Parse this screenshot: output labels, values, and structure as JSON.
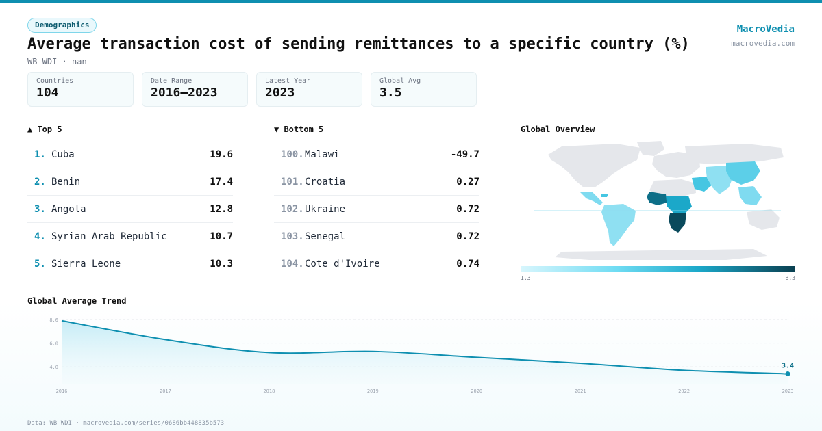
{
  "header": {
    "badge": "Demographics",
    "title": "Average transaction cost of sending remittances to a specific country (%)",
    "subtitle": "WB WDI · nan"
  },
  "brand": {
    "name": "MacroVedia",
    "url": "macrovedia.com"
  },
  "stats": [
    {
      "label": "Countries",
      "value": "104"
    },
    {
      "label": "Date Range",
      "value": "2016–2023"
    },
    {
      "label": "Latest Year",
      "value": "2023"
    },
    {
      "label": "Global Avg",
      "value": "3.5"
    }
  ],
  "top": {
    "title": "▲ Top 5",
    "rows": [
      {
        "rank": "1.",
        "name": "Cuba",
        "value": "19.6"
      },
      {
        "rank": "2.",
        "name": "Benin",
        "value": "17.4"
      },
      {
        "rank": "3.",
        "name": "Angola",
        "value": "12.8"
      },
      {
        "rank": "4.",
        "name": "Syrian Arab Republic",
        "value": "10.7"
      },
      {
        "rank": "5.",
        "name": "Sierra Leone",
        "value": "10.3"
      }
    ]
  },
  "bottom": {
    "title": "▼ Bottom 5",
    "rows": [
      {
        "rank": "100.",
        "name": "Malawi",
        "value": "-49.7"
      },
      {
        "rank": "101.",
        "name": "Croatia",
        "value": "0.27"
      },
      {
        "rank": "102.",
        "name": "Ukraine",
        "value": "0.72"
      },
      {
        "rank": "103.",
        "name": "Senegal",
        "value": "0.72"
      },
      {
        "rank": "104.",
        "name": "Cote d'Ivoire",
        "value": "0.74"
      }
    ]
  },
  "map": {
    "title": "Global Overview",
    "scale_min": "1.3",
    "scale_max": "8.3"
  },
  "trend_title": "Global Average Trend",
  "chart_data": {
    "type": "area",
    "title": "Global Average Trend",
    "x": [
      2016,
      2017,
      2018,
      2019,
      2020,
      2021,
      2022,
      2023
    ],
    "values": [
      7.9,
      6.3,
      5.2,
      5.3,
      4.8,
      4.3,
      3.7,
      3.4
    ],
    "ylim": [
      3.2,
      8.0
    ],
    "yticks": [
      "4.0",
      "6.0",
      "8.0"
    ],
    "last_label": "3.4",
    "xlabel": "",
    "ylabel": "",
    "colors": {
      "line": "#0e8fb0",
      "fill": "#cdeff7"
    }
  },
  "footer": "Data: WB WDI · macrovedia.com/series/0686bb448835b573"
}
